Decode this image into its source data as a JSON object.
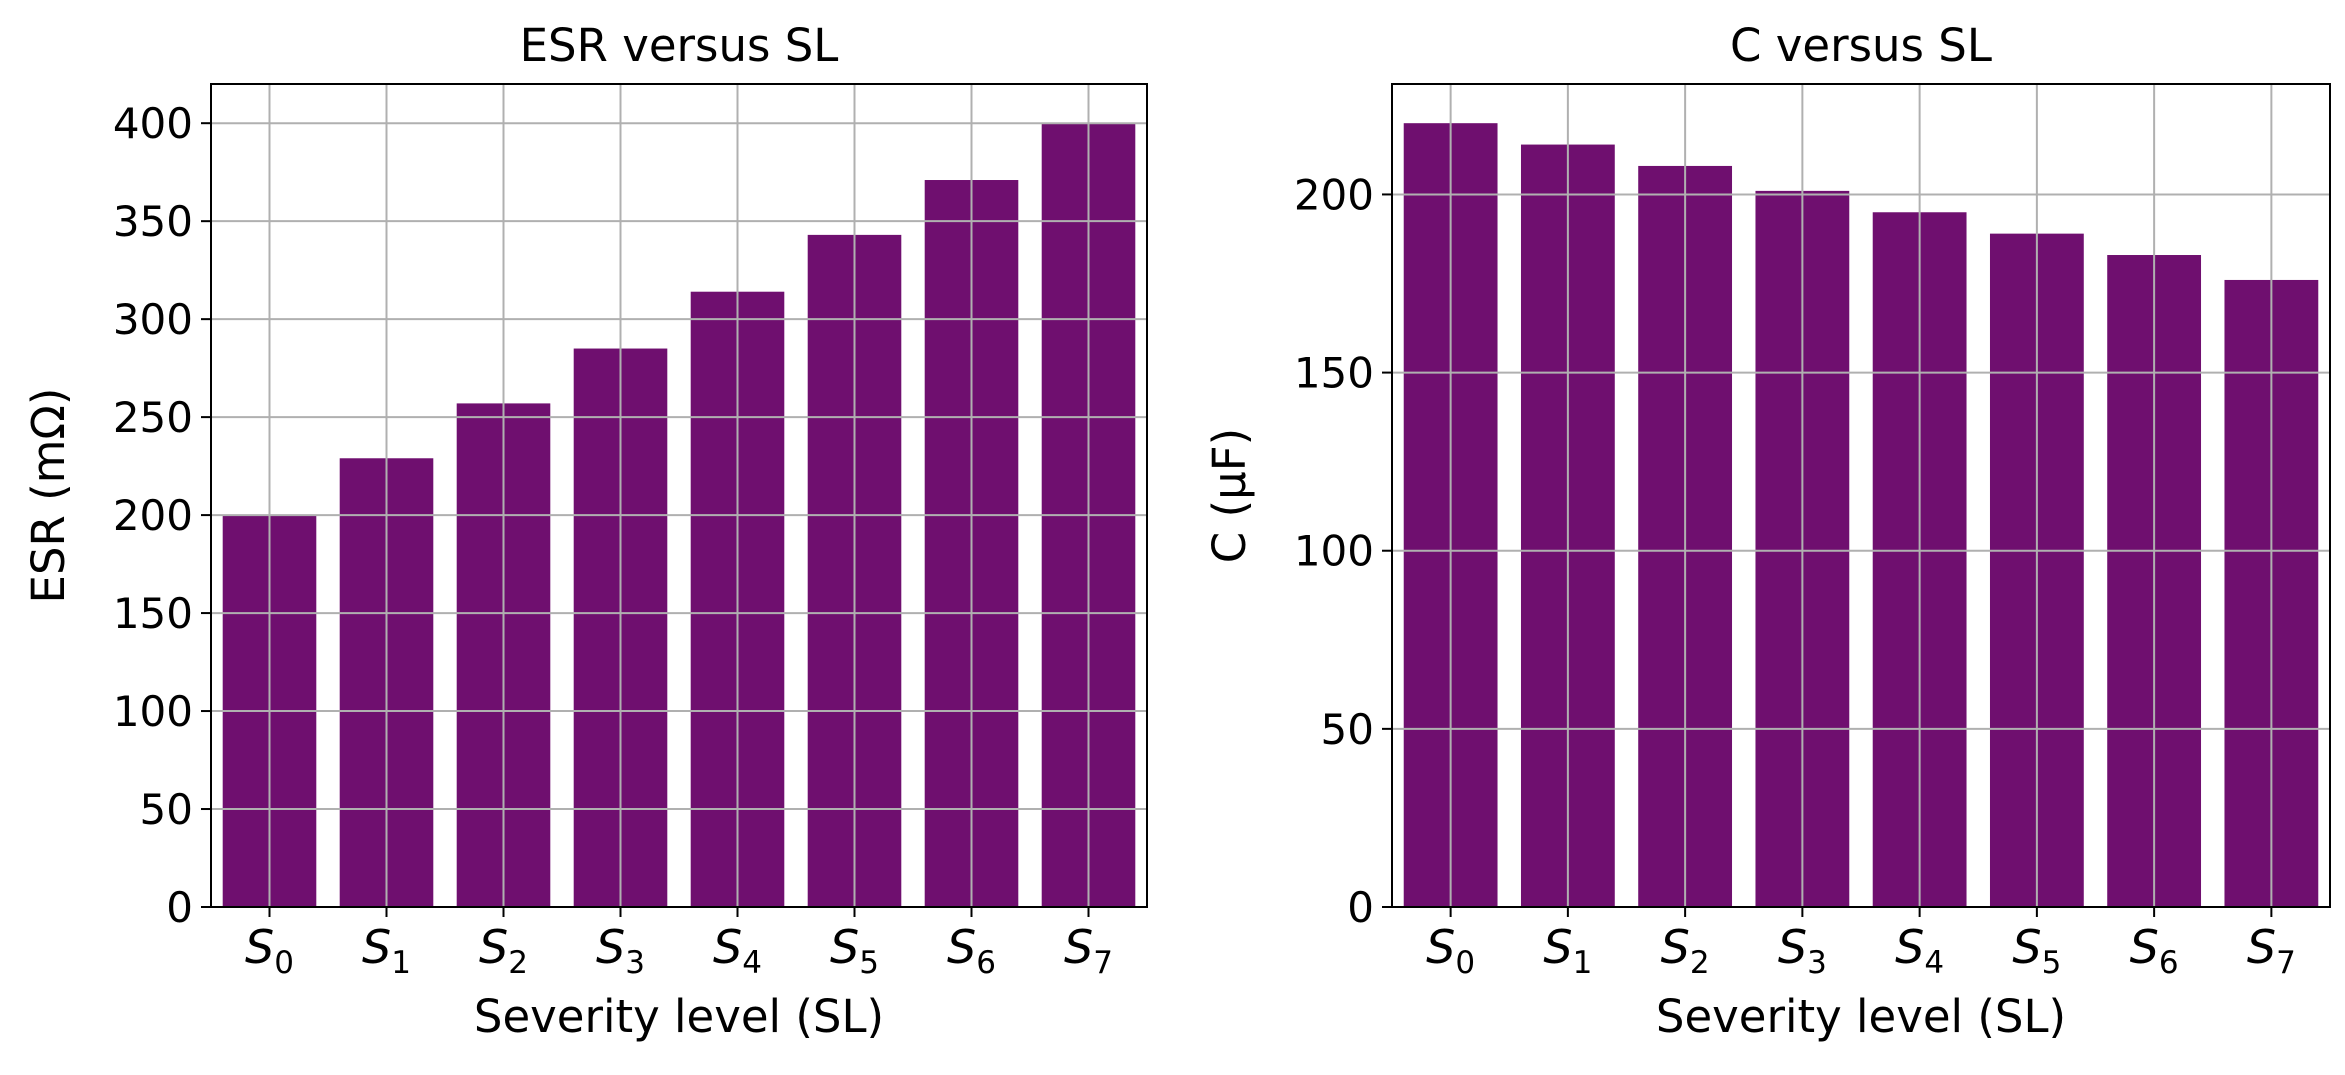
{
  "chart_data": [
    {
      "type": "bar",
      "title": "ESR versus SL",
      "xlabel": "Severity level (SL)",
      "ylabel": "ESR (mΩ)",
      "categories": [
        {
          "base": "S",
          "sub": "0"
        },
        {
          "base": "S",
          "sub": "1"
        },
        {
          "base": "S",
          "sub": "2"
        },
        {
          "base": "S",
          "sub": "3"
        },
        {
          "base": "S",
          "sub": "4"
        },
        {
          "base": "S",
          "sub": "5"
        },
        {
          "base": "S",
          "sub": "6"
        },
        {
          "base": "S",
          "sub": "7"
        }
      ],
      "values": [
        200,
        229,
        257,
        285,
        314,
        343,
        371,
        400
      ],
      "ylim": [
        0,
        420
      ],
      "yticks": [
        0,
        50,
        100,
        150,
        200,
        250,
        300,
        350,
        400
      ],
      "grid": true,
      "color": "#6f0f6f"
    },
    {
      "type": "bar",
      "title": "C versus SL",
      "xlabel": "Severity level (SL)",
      "ylabel": "C (µF)",
      "categories": [
        {
          "base": "S",
          "sub": "0"
        },
        {
          "base": "S",
          "sub": "1"
        },
        {
          "base": "S",
          "sub": "2"
        },
        {
          "base": "S",
          "sub": "3"
        },
        {
          "base": "S",
          "sub": "4"
        },
        {
          "base": "S",
          "sub": "5"
        },
        {
          "base": "S",
          "sub": "6"
        },
        {
          "base": "S",
          "sub": "7"
        }
      ],
      "values": [
        220,
        214,
        208,
        201,
        195,
        189,
        183,
        176
      ],
      "ylim": [
        0,
        231
      ],
      "yticks": [
        0,
        50,
        100,
        150,
        200
      ],
      "grid": true,
      "color": "#6f0f6f"
    }
  ]
}
